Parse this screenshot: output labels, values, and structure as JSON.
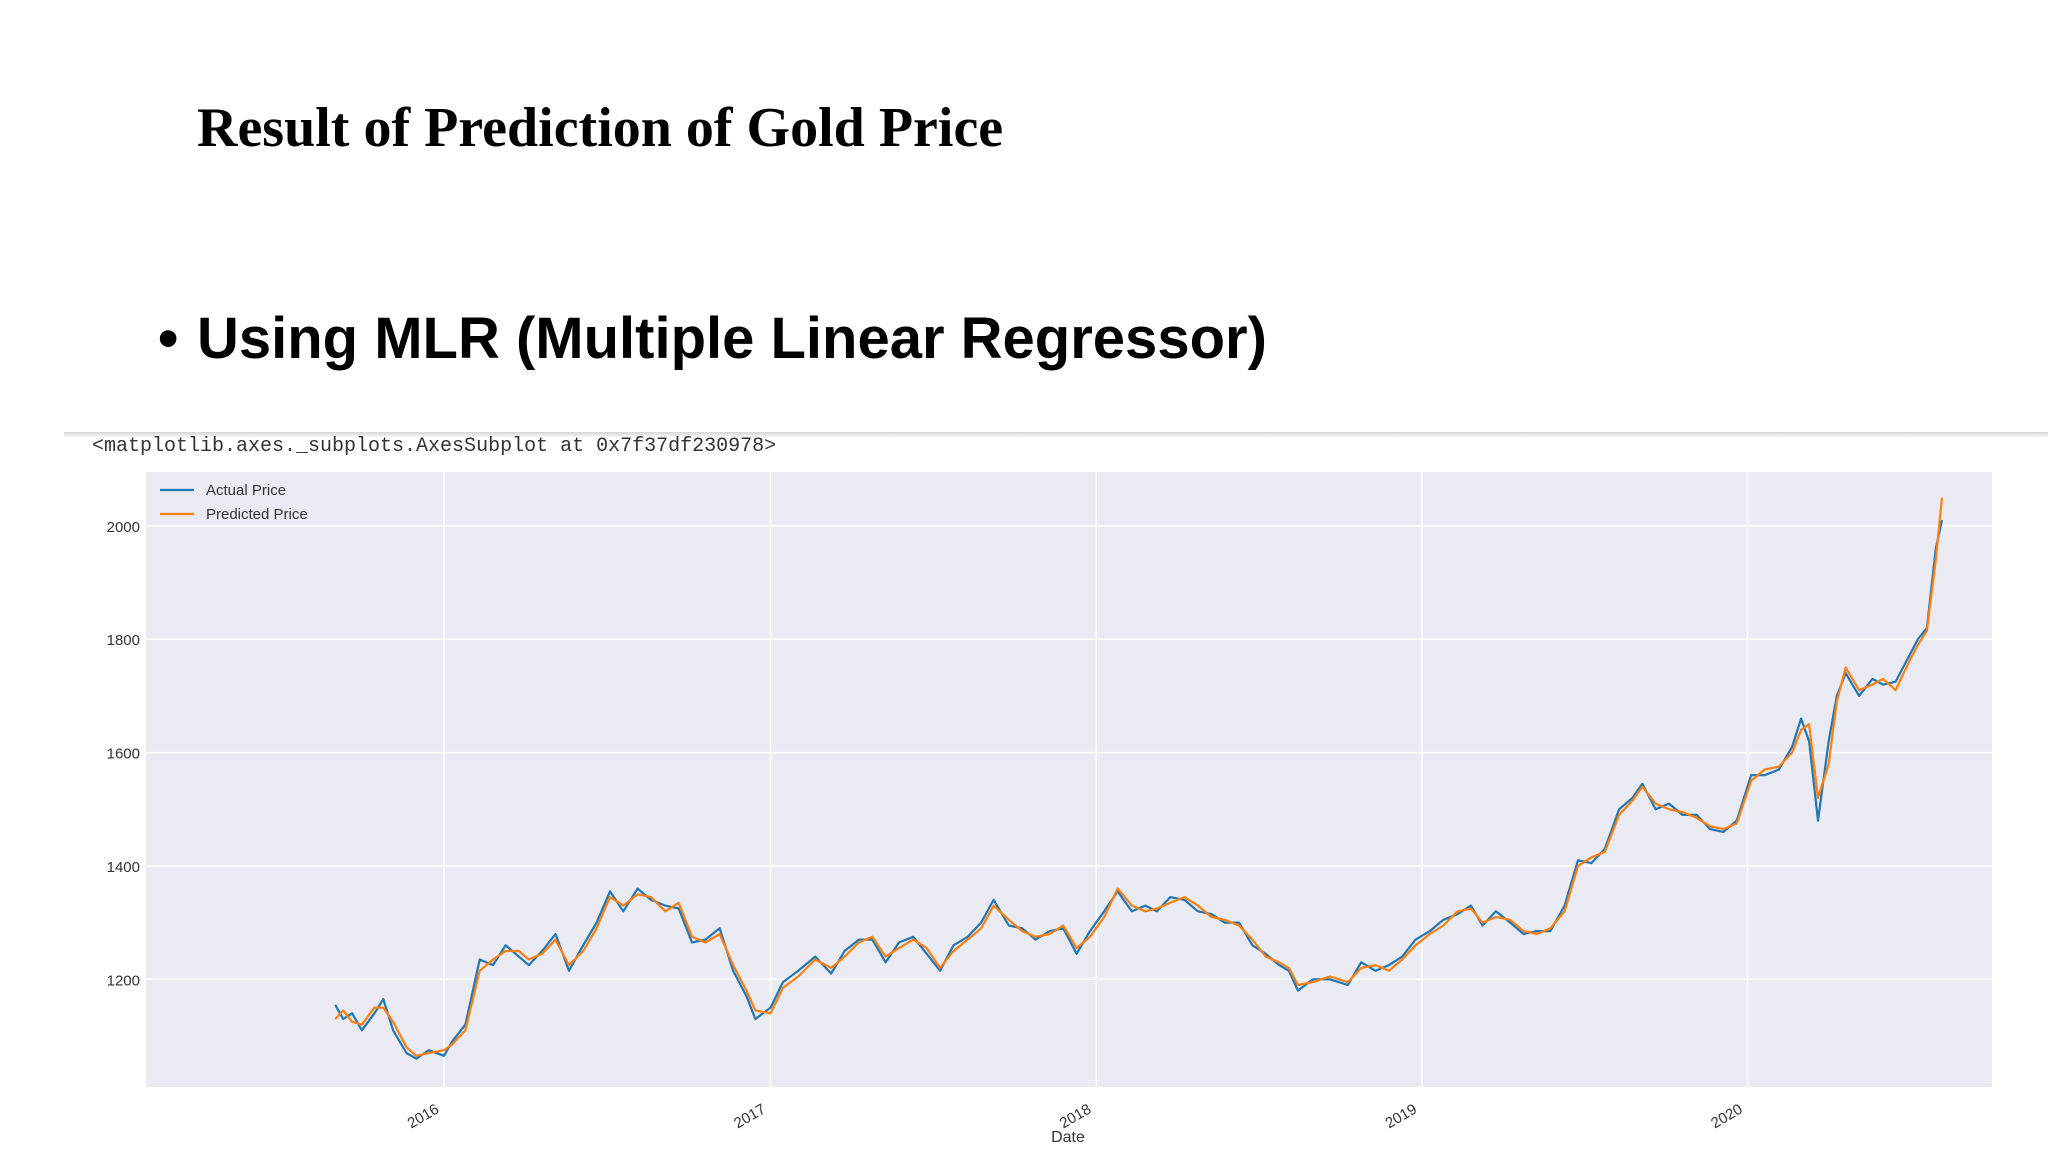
{
  "slide": {
    "title": "Result of Prediction of Gold Price",
    "bullet": "Using MLR (Multiple Linear Regressor)",
    "repr_text": "<matplotlib.axes._subplots.AxesSubplot at 0x7f37df230978>"
  },
  "chart_data": {
    "type": "line",
    "title": "",
    "xlabel": "Date",
    "ylabel": "",
    "xlim": [
      "2015-02-01",
      "2020-10-01"
    ],
    "ylim": [
      1010,
      2095
    ],
    "xticks": [
      "2016-01-01",
      "2017-01-01",
      "2018-01-01",
      "2019-01-01",
      "2020-01-01"
    ],
    "xtick_labels": [
      "2016",
      "2017",
      "2018",
      "2019",
      "2020"
    ],
    "yticks": [
      1200,
      1400,
      1600,
      1800,
      2000
    ],
    "ytick_labels": [
      "1200",
      "1400",
      "1600",
      "1800",
      "2000"
    ],
    "grid": true,
    "legend_position": "top-left",
    "colors": {
      "axes_bg": "#eaeaf2",
      "grid": "#ffffff",
      "actual": "#1f77b4",
      "predicted": "#ff7f0e"
    },
    "series": [
      {
        "name": "Actual Price",
        "points": [
          [
            "2015-09-01",
            1155
          ],
          [
            "2015-09-10",
            1130
          ],
          [
            "2015-09-20",
            1140
          ],
          [
            "2015-10-01",
            1110
          ],
          [
            "2015-10-15",
            1140
          ],
          [
            "2015-10-25",
            1165
          ],
          [
            "2015-11-05",
            1110
          ],
          [
            "2015-11-20",
            1070
          ],
          [
            "2015-12-01",
            1060
          ],
          [
            "2015-12-15",
            1075
          ],
          [
            "2016-01-01",
            1065
          ],
          [
            "2016-01-10",
            1090
          ],
          [
            "2016-01-25",
            1120
          ],
          [
            "2016-02-10",
            1235
          ],
          [
            "2016-02-25",
            1225
          ],
          [
            "2016-03-10",
            1260
          ],
          [
            "2016-03-25",
            1240
          ],
          [
            "2016-04-05",
            1225
          ],
          [
            "2016-04-20",
            1250
          ],
          [
            "2016-05-05",
            1280
          ],
          [
            "2016-05-20",
            1215
          ],
          [
            "2016-06-05",
            1260
          ],
          [
            "2016-06-20",
            1300
          ],
          [
            "2016-07-05",
            1355
          ],
          [
            "2016-07-20",
            1320
          ],
          [
            "2016-08-05",
            1360
          ],
          [
            "2016-08-20",
            1340
          ],
          [
            "2016-09-05",
            1330
          ],
          [
            "2016-09-20",
            1325
          ],
          [
            "2016-10-05",
            1265
          ],
          [
            "2016-10-20",
            1270
          ],
          [
            "2016-11-05",
            1290
          ],
          [
            "2016-11-20",
            1215
          ],
          [
            "2016-12-05",
            1170
          ],
          [
            "2016-12-15",
            1130
          ],
          [
            "2017-01-01",
            1150
          ],
          [
            "2017-01-15",
            1195
          ],
          [
            "2017-02-01",
            1215
          ],
          [
            "2017-02-20",
            1240
          ],
          [
            "2017-03-10",
            1210
          ],
          [
            "2017-03-25",
            1250
          ],
          [
            "2017-04-10",
            1270
          ],
          [
            "2017-04-25",
            1270
          ],
          [
            "2017-05-10",
            1230
          ],
          [
            "2017-05-25",
            1265
          ],
          [
            "2017-06-10",
            1275
          ],
          [
            "2017-06-25",
            1245
          ],
          [
            "2017-07-10",
            1215
          ],
          [
            "2017-07-25",
            1260
          ],
          [
            "2017-08-10",
            1275
          ],
          [
            "2017-08-25",
            1300
          ],
          [
            "2017-09-08",
            1340
          ],
          [
            "2017-09-25",
            1295
          ],
          [
            "2017-10-10",
            1290
          ],
          [
            "2017-10-25",
            1270
          ],
          [
            "2017-11-10",
            1285
          ],
          [
            "2017-11-25",
            1290
          ],
          [
            "2017-12-10",
            1245
          ],
          [
            "2017-12-25",
            1285
          ],
          [
            "2018-01-10",
            1320
          ],
          [
            "2018-01-25",
            1355
          ],
          [
            "2018-02-10",
            1320
          ],
          [
            "2018-02-25",
            1330
          ],
          [
            "2018-03-10",
            1320
          ],
          [
            "2018-03-25",
            1345
          ],
          [
            "2018-04-10",
            1340
          ],
          [
            "2018-04-25",
            1320
          ],
          [
            "2018-05-10",
            1315
          ],
          [
            "2018-05-25",
            1300
          ],
          [
            "2018-06-10",
            1300
          ],
          [
            "2018-06-25",
            1260
          ],
          [
            "2018-07-10",
            1245
          ],
          [
            "2018-07-25",
            1225
          ],
          [
            "2018-08-05",
            1215
          ],
          [
            "2018-08-15",
            1180
          ],
          [
            "2018-09-01",
            1200
          ],
          [
            "2018-09-20",
            1200
          ],
          [
            "2018-10-10",
            1190
          ],
          [
            "2018-10-25",
            1230
          ],
          [
            "2018-11-10",
            1215
          ],
          [
            "2018-11-25",
            1225
          ],
          [
            "2018-12-10",
            1240
          ],
          [
            "2018-12-25",
            1270
          ],
          [
            "2019-01-10",
            1285
          ],
          [
            "2019-01-25",
            1305
          ],
          [
            "2019-02-10",
            1315
          ],
          [
            "2019-02-25",
            1330
          ],
          [
            "2019-03-10",
            1295
          ],
          [
            "2019-03-25",
            1320
          ],
          [
            "2019-04-10",
            1300
          ],
          [
            "2019-04-25",
            1280
          ],
          [
            "2019-05-10",
            1285
          ],
          [
            "2019-05-25",
            1285
          ],
          [
            "2019-06-10",
            1330
          ],
          [
            "2019-06-25",
            1410
          ],
          [
            "2019-07-10",
            1405
          ],
          [
            "2019-07-25",
            1430
          ],
          [
            "2019-08-10",
            1500
          ],
          [
            "2019-08-25",
            1520
          ],
          [
            "2019-09-05",
            1545
          ],
          [
            "2019-09-20",
            1500
          ],
          [
            "2019-10-05",
            1510
          ],
          [
            "2019-10-20",
            1490
          ],
          [
            "2019-11-05",
            1490
          ],
          [
            "2019-11-20",
            1465
          ],
          [
            "2019-12-05",
            1460
          ],
          [
            "2019-12-20",
            1480
          ],
          [
            "2020-01-05",
            1560
          ],
          [
            "2020-01-20",
            1560
          ],
          [
            "2020-02-05",
            1570
          ],
          [
            "2020-02-20",
            1610
          ],
          [
            "2020-03-01",
            1660
          ],
          [
            "2020-03-10",
            1620
          ],
          [
            "2020-03-20",
            1480
          ],
          [
            "2020-04-01",
            1620
          ],
          [
            "2020-04-10",
            1700
          ],
          [
            "2020-04-20",
            1740
          ],
          [
            "2020-05-05",
            1700
          ],
          [
            "2020-05-20",
            1730
          ],
          [
            "2020-06-01",
            1720
          ],
          [
            "2020-06-15",
            1725
          ],
          [
            "2020-06-30",
            1770
          ],
          [
            "2020-07-10",
            1800
          ],
          [
            "2020-07-20",
            1820
          ],
          [
            "2020-07-30",
            1960
          ],
          [
            "2020-08-06",
            2010
          ]
        ]
      },
      {
        "name": "Predicted Price",
        "points": [
          [
            "2015-09-01",
            1130
          ],
          [
            "2015-09-10",
            1145
          ],
          [
            "2015-09-20",
            1125
          ],
          [
            "2015-10-01",
            1120
          ],
          [
            "2015-10-15",
            1150
          ],
          [
            "2015-10-25",
            1150
          ],
          [
            "2015-11-05",
            1125
          ],
          [
            "2015-11-20",
            1080
          ],
          [
            "2015-12-01",
            1065
          ],
          [
            "2015-12-15",
            1070
          ],
          [
            "2016-01-01",
            1075
          ],
          [
            "2016-01-10",
            1085
          ],
          [
            "2016-01-25",
            1110
          ],
          [
            "2016-02-10",
            1215
          ],
          [
            "2016-02-25",
            1235
          ],
          [
            "2016-03-10",
            1250
          ],
          [
            "2016-03-25",
            1250
          ],
          [
            "2016-04-05",
            1235
          ],
          [
            "2016-04-20",
            1245
          ],
          [
            "2016-05-05",
            1270
          ],
          [
            "2016-05-20",
            1225
          ],
          [
            "2016-06-05",
            1250
          ],
          [
            "2016-06-20",
            1290
          ],
          [
            "2016-07-05",
            1345
          ],
          [
            "2016-07-20",
            1330
          ],
          [
            "2016-08-05",
            1350
          ],
          [
            "2016-08-20",
            1345
          ],
          [
            "2016-09-05",
            1320
          ],
          [
            "2016-09-20",
            1335
          ],
          [
            "2016-10-05",
            1275
          ],
          [
            "2016-10-20",
            1265
          ],
          [
            "2016-11-05",
            1280
          ],
          [
            "2016-11-20",
            1225
          ],
          [
            "2016-12-05",
            1180
          ],
          [
            "2016-12-15",
            1145
          ],
          [
            "2017-01-01",
            1140
          ],
          [
            "2017-01-15",
            1185
          ],
          [
            "2017-02-01",
            1205
          ],
          [
            "2017-02-20",
            1235
          ],
          [
            "2017-03-10",
            1220
          ],
          [
            "2017-03-25",
            1240
          ],
          [
            "2017-04-10",
            1265
          ],
          [
            "2017-04-25",
            1275
          ],
          [
            "2017-05-10",
            1240
          ],
          [
            "2017-05-25",
            1255
          ],
          [
            "2017-06-10",
            1270
          ],
          [
            "2017-06-25",
            1255
          ],
          [
            "2017-07-10",
            1220
          ],
          [
            "2017-07-25",
            1250
          ],
          [
            "2017-08-10",
            1270
          ],
          [
            "2017-08-25",
            1290
          ],
          [
            "2017-09-08",
            1330
          ],
          [
            "2017-09-25",
            1305
          ],
          [
            "2017-10-10",
            1285
          ],
          [
            "2017-10-25",
            1275
          ],
          [
            "2017-11-10",
            1280
          ],
          [
            "2017-11-25",
            1295
          ],
          [
            "2017-12-10",
            1255
          ],
          [
            "2017-12-25",
            1275
          ],
          [
            "2018-01-10",
            1310
          ],
          [
            "2018-01-25",
            1360
          ],
          [
            "2018-02-10",
            1330
          ],
          [
            "2018-02-25",
            1320
          ],
          [
            "2018-03-10",
            1325
          ],
          [
            "2018-03-25",
            1335
          ],
          [
            "2018-04-10",
            1345
          ],
          [
            "2018-04-25",
            1330
          ],
          [
            "2018-05-10",
            1310
          ],
          [
            "2018-05-25",
            1305
          ],
          [
            "2018-06-10",
            1295
          ],
          [
            "2018-06-25",
            1270
          ],
          [
            "2018-07-10",
            1240
          ],
          [
            "2018-07-25",
            1230
          ],
          [
            "2018-08-05",
            1220
          ],
          [
            "2018-08-15",
            1190
          ],
          [
            "2018-09-01",
            1195
          ],
          [
            "2018-09-20",
            1205
          ],
          [
            "2018-10-10",
            1195
          ],
          [
            "2018-10-25",
            1220
          ],
          [
            "2018-11-10",
            1225
          ],
          [
            "2018-11-25",
            1215
          ],
          [
            "2018-12-10",
            1235
          ],
          [
            "2018-12-25",
            1260
          ],
          [
            "2019-01-10",
            1280
          ],
          [
            "2019-01-25",
            1295
          ],
          [
            "2019-02-10",
            1320
          ],
          [
            "2019-02-25",
            1325
          ],
          [
            "2019-03-10",
            1300
          ],
          [
            "2019-03-25",
            1310
          ],
          [
            "2019-04-10",
            1305
          ],
          [
            "2019-04-25",
            1285
          ],
          [
            "2019-05-10",
            1280
          ],
          [
            "2019-05-25",
            1290
          ],
          [
            "2019-06-10",
            1320
          ],
          [
            "2019-06-25",
            1400
          ],
          [
            "2019-07-10",
            1415
          ],
          [
            "2019-07-25",
            1425
          ],
          [
            "2019-08-10",
            1490
          ],
          [
            "2019-08-25",
            1515
          ],
          [
            "2019-09-05",
            1540
          ],
          [
            "2019-09-20",
            1510
          ],
          [
            "2019-10-05",
            1500
          ],
          [
            "2019-10-20",
            1495
          ],
          [
            "2019-11-05",
            1485
          ],
          [
            "2019-11-20",
            1470
          ],
          [
            "2019-12-05",
            1465
          ],
          [
            "2019-12-20",
            1475
          ],
          [
            "2020-01-05",
            1550
          ],
          [
            "2020-01-20",
            1570
          ],
          [
            "2020-02-05",
            1575
          ],
          [
            "2020-02-20",
            1600
          ],
          [
            "2020-03-01",
            1640
          ],
          [
            "2020-03-10",
            1650
          ],
          [
            "2020-03-20",
            1520
          ],
          [
            "2020-04-01",
            1580
          ],
          [
            "2020-04-10",
            1690
          ],
          [
            "2020-04-20",
            1750
          ],
          [
            "2020-05-05",
            1710
          ],
          [
            "2020-05-20",
            1720
          ],
          [
            "2020-06-01",
            1730
          ],
          [
            "2020-06-15",
            1710
          ],
          [
            "2020-06-30",
            1760
          ],
          [
            "2020-07-10",
            1790
          ],
          [
            "2020-07-20",
            1815
          ],
          [
            "2020-07-30",
            1940
          ],
          [
            "2020-08-06",
            2050
          ]
        ]
      }
    ]
  }
}
